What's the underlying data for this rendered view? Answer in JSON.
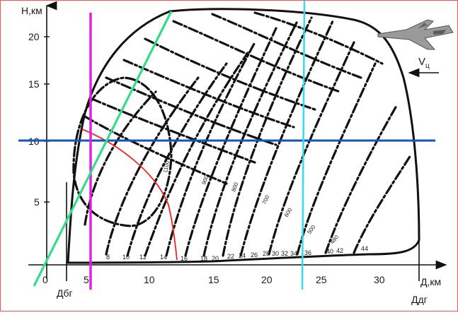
{
  "diagram": {
    "y_axis_title": "Н,км",
    "x_axis_title": "Д,км",
    "y_ticks": [
      "20",
      "15",
      "10",
      "5"
    ],
    "x_ticks": [
      "0",
      "5",
      "10",
      "15",
      "20",
      "25",
      "30"
    ],
    "range_markers": {
      "min": "Дбг",
      "max": "Ддг"
    },
    "speed_label": "V",
    "speed_subscript": "ц",
    "bottom_numbers": [
      "8",
      "10",
      "12",
      "14",
      "16",
      "18",
      "20",
      "22",
      "24",
      "26",
      "28",
      "30",
      "32",
      "34",
      "36",
      "40",
      "42",
      "44"
    ],
    "curve_labels": [
      "1100",
      "900",
      "800",
      "700",
      "600",
      "500",
      "480"
    ],
    "colors": {
      "ink": "#111111",
      "magenta": "#dd22dd",
      "cyan": "#33ddee",
      "green": "#33dd88",
      "blue": "#1155bb",
      "red": "#ee2222",
      "frame": "#ff5050"
    }
  }
}
